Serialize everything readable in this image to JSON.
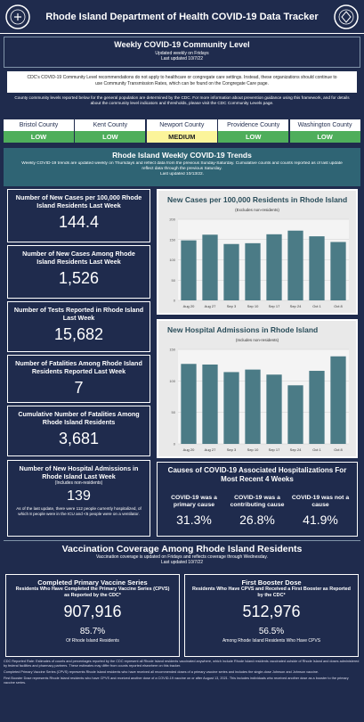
{
  "header": {
    "title": "Rhode Island Department of Health COVID-19 Data Tracker"
  },
  "community": {
    "title": "Weekly COVID-19 Community Level",
    "updated": "Updated weekly on Fridays",
    "last_updated": "Last updated 10/7/22",
    "notice": "CDC's COVID-19 Community Level recommendations do not apply to healthcare or congregate care settings. Instead, these organizations should continue to use Community Transmission Rates, which can be found on the Congregate Care page.",
    "note": "County community levels reported below for the general population are determined by the CDC. For more information about prevention guidance using this framework, and for details about the community level indicators and thresholds, please visit the CDC Community Levels page.",
    "counties": [
      {
        "name": "Bristol County",
        "level": "LOW",
        "color": "#4fae5b"
      },
      {
        "name": "Kent County",
        "level": "LOW",
        "color": "#4fae5b"
      },
      {
        "name": "Newport County",
        "level": "MEDIUM",
        "color": "#fbf49a"
      },
      {
        "name": "Providence County",
        "level": "LOW",
        "color": "#4fae5b"
      },
      {
        "name": "Washington County",
        "level": "LOW",
        "color": "#4fae5b"
      }
    ]
  },
  "trends": {
    "title": "Rhode Island Weekly COVID-19 Trends",
    "description": "Weekly COVID-19 trends are updated weekly on Thursdays and reflect data from the previous Sunday-Saturday. Cumulative counts and counts reported as of last update reflect data through the previous Saturday.",
    "last_updated": "Last updated 10/13/22.",
    "stats": [
      {
        "label": "Number of New Cases per 100,000 Rhode Island Residents Last Week",
        "value": "144.4"
      },
      {
        "label": "Number of New Cases Among Rhode Island Residents Last Week",
        "value": "1,526"
      },
      {
        "label": "Number of Tests Reported in Rhode Island Last Week",
        "value": "15,682"
      },
      {
        "label": "Number of Fatalities Among Rhode Island Residents Reported Last Week",
        "value": "7"
      },
      {
        "label": "Cumulative Number of Fatalities Among Rhode Island Residents",
        "value": "3,681"
      },
      {
        "label": "Number of New Hospital Admissions in Rhode Island Last Week",
        "sublabel": "(Includes non-residents)",
        "value": "139",
        "note": "As of the last update, there were 112 people currently hospitalized, of which 8 people were in the ICU and <5 people were on a ventilator."
      }
    ],
    "causes": {
      "title": "Causes of COVID-19 Associated Hospitalizations For Most Recent 4 Weeks",
      "items": [
        {
          "label": "COVID-19 was a primary cause",
          "value": "31.3%"
        },
        {
          "label": "COVID-19 was a contributing cause",
          "value": "26.8%"
        },
        {
          "label": "COVID-19 was not a cause",
          "value": "41.9%"
        }
      ]
    }
  },
  "chart_data": [
    {
      "type": "bar",
      "title": "New Cases per 100,000 Residents in Rhode Island",
      "subtitle": "(Excludes non-residents)",
      "categories": [
        "Aug 20",
        "Aug 27",
        "Sep 3",
        "Sep 10",
        "Sep 17",
        "Sep 24",
        "Oct 1",
        "Oct 8"
      ],
      "values": [
        148,
        162,
        139,
        141,
        163,
        172,
        158,
        144
      ],
      "color": "#4b7b86",
      "ylim": [
        0,
        200
      ],
      "yticks": [
        0,
        50,
        100,
        150,
        200
      ],
      "grid": true
    },
    {
      "type": "bar",
      "title": "New Hospital Admissions in Rhode Island",
      "subtitle": "(Includes non-residents)",
      "categories": [
        "Aug 20",
        "Aug 27",
        "Sep 3",
        "Sep 10",
        "Sep 17",
        "Sep 24",
        "Oct 1",
        "Oct 8"
      ],
      "values": [
        127,
        126,
        114,
        118,
        110,
        93,
        116,
        139
      ],
      "color": "#4b7b86",
      "ylim": [
        0,
        150
      ],
      "yticks": [
        0,
        50,
        100,
        150
      ],
      "grid": true
    }
  ],
  "vaccination": {
    "title": "Vaccination Coverage Among Rhode Island Residents",
    "subtitle": "Vaccination coverage is updated on Fridays and reflects coverage through Wednesday.",
    "last_updated": "Last updated 10/7/22",
    "boxes": [
      {
        "title": "Completed Primary Vaccine Series",
        "subtitle": "Residents Who Have Completed the Primary Vaccine Series (CPVS) as Reported by the CDC*",
        "count": "907,916",
        "percent": "85.7%",
        "caption": "Of Rhode Island Residents"
      },
      {
        "title": "First Booster Dose",
        "subtitle": "Residents Who Have CPVS and Received a First Booster as Reported by the CDC*",
        "count": "512,976",
        "percent": "56.5%",
        "caption": "Among Rhode Island Residents Who Have CPVS"
      }
    ]
  },
  "footnotes": [
    "CDC Reported Rate: Estimates of counts and percentages reported by the CDC represent all Rhode Island residents vaccinated anywhere, which include Rhode Island residents vaccinated outside of Rhode Island and doses administered by federal facilities and pharmacy partners. These estimates may differ from counts reported elsewhere on this tracker.",
    "Completed Primary Vaccine Series (CPVS) represents Rhode Island residents who have received all recommended doses of a primary vaccine series and includes the single-dose Johnson and Johnson vaccine.",
    "First Booster Dose represents Rhode Island residents who have CPVS and received another dose of a COVID-19 vaccine on or after August 13, 2021. This includes individuals who received another dose as a booster to the primary vaccine series."
  ]
}
